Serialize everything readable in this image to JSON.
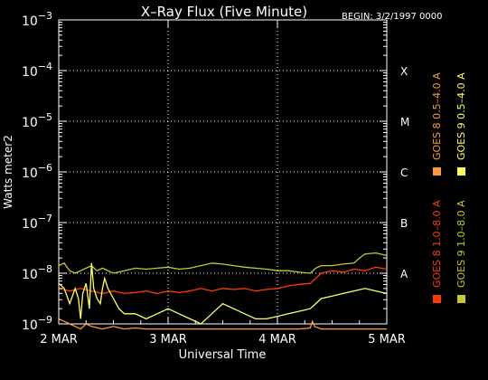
{
  "chart_data": {
    "type": "line",
    "title": "X–Ray Flux (Five Minute)",
    "begin_label": "BEGIN: 3/2/1997 0000",
    "xlabel": "Universal Time",
    "ylabel": "Watts meter2",
    "y_scale": "log",
    "ylim_exponent": [
      -9,
      -3
    ],
    "xlim_days": [
      0,
      3
    ],
    "y_ticks": [
      {
        "base": "10",
        "exp": "−3",
        "value": -3
      },
      {
        "base": "10",
        "exp": "−4",
        "value": -4
      },
      {
        "base": "10",
        "exp": "−5",
        "value": -5
      },
      {
        "base": "10",
        "exp": "−6",
        "value": -6
      },
      {
        "base": "10",
        "exp": "−7",
        "value": -7
      },
      {
        "base": "10",
        "exp": "−8",
        "value": -8
      },
      {
        "base": "10",
        "exp": "−9",
        "value": -9
      }
    ],
    "x_ticks": [
      {
        "label": "2 MAR",
        "value": 0
      },
      {
        "label": "3 MAR",
        "value": 1
      },
      {
        "label": "4 MAR",
        "value": 2
      },
      {
        "label": "5 MAR",
        "value": 3
      }
    ],
    "class_labels": [
      {
        "label": "X",
        "value": -4
      },
      {
        "label": "M",
        "value": -5
      },
      {
        "label": "C",
        "value": -6
      },
      {
        "label": "B",
        "value": -7
      },
      {
        "label": "A",
        "value": -8
      }
    ],
    "grid": true,
    "legend_position": "right, vertical",
    "series": [
      {
        "name": "GOES 8 1.0–8.0 A",
        "color": "#ff3c00",
        "x": [
          0,
          0.1,
          0.2,
          0.3,
          0.4,
          0.5,
          0.6,
          0.7,
          0.8,
          0.9,
          1.0,
          1.1,
          1.2,
          1.3,
          1.4,
          1.5,
          1.6,
          1.7,
          1.8,
          1.9,
          2.0,
          2.1,
          2.2,
          2.3,
          2.35,
          2.4,
          2.5,
          2.6,
          2.7,
          2.8,
          2.9,
          3.0
        ],
        "y": [
          -8.3,
          -8.35,
          -8.3,
          -8.35,
          -8.4,
          -8.35,
          -8.4,
          -8.38,
          -8.35,
          -8.4,
          -8.35,
          -8.38,
          -8.35,
          -8.3,
          -8.35,
          -8.3,
          -8.32,
          -8.3,
          -8.35,
          -8.32,
          -8.3,
          -8.25,
          -8.22,
          -8.2,
          -8.1,
          -8.0,
          -7.95,
          -7.98,
          -7.92,
          -7.95,
          -7.88,
          -7.92
        ]
      },
      {
        "name": "GOES 8 0.5–4.0 A",
        "color": "#ff9a3c",
        "x": [
          0,
          0.05,
          0.1,
          0.15,
          0.2,
          0.25,
          0.3,
          0.4,
          0.5,
          0.6,
          0.7,
          0.8,
          0.9,
          1.0,
          1.2,
          1.4,
          1.6,
          1.8,
          2.0,
          2.2,
          2.3,
          2.32,
          2.34,
          2.4,
          2.6,
          2.8,
          3.0
        ],
        "y": [
          -8.9,
          -8.95,
          -9.0,
          -9.05,
          -9.1,
          -9.0,
          -9.05,
          -9.1,
          -9.05,
          -9.1,
          -9.08,
          -9.1,
          -9.1,
          -9.1,
          -9.1,
          -9.1,
          -9.1,
          -9.1,
          -9.1,
          -9.1,
          -9.08,
          -8.95,
          -9.05,
          -9.1,
          -9.1,
          -9.1,
          -9.1
        ]
      },
      {
        "name": "GOES 9 1.0–8.0 A",
        "color": "#c8c832",
        "x": [
          0,
          0.05,
          0.1,
          0.15,
          0.2,
          0.25,
          0.3,
          0.35,
          0.4,
          0.45,
          0.5,
          0.6,
          0.7,
          0.8,
          0.9,
          1.0,
          1.1,
          1.2,
          1.3,
          1.4,
          1.5,
          1.6,
          1.7,
          1.8,
          1.9,
          2.0,
          2.1,
          2.2,
          2.3,
          2.35,
          2.4,
          2.5,
          2.6,
          2.7,
          2.75,
          2.8,
          2.9,
          3.0
        ],
        "y": [
          -7.85,
          -7.8,
          -7.95,
          -8.0,
          -7.95,
          -7.9,
          -7.85,
          -7.95,
          -7.9,
          -7.95,
          -8.0,
          -7.95,
          -7.9,
          -7.92,
          -7.9,
          -7.88,
          -7.92,
          -7.9,
          -7.85,
          -7.8,
          -7.82,
          -7.85,
          -7.88,
          -7.9,
          -7.92,
          -7.95,
          -7.95,
          -7.98,
          -8.0,
          -7.9,
          -7.85,
          -7.85,
          -7.82,
          -7.8,
          -7.7,
          -7.62,
          -7.6,
          -7.65
        ]
      },
      {
        "name": "GOES 9 0.5–4.0 A",
        "color": "#ffff64",
        "x": [
          0,
          0.05,
          0.1,
          0.15,
          0.18,
          0.2,
          0.22,
          0.25,
          0.28,
          0.3,
          0.32,
          0.35,
          0.38,
          0.4,
          0.42,
          0.45,
          0.5,
          0.55,
          0.6,
          0.7,
          0.8,
          0.9,
          1.0,
          1.1,
          1.2,
          1.3,
          1.4,
          1.5,
          1.6,
          1.7,
          1.8,
          1.9,
          2.0,
          2.1,
          2.2,
          2.3,
          2.35,
          2.4,
          2.5,
          2.6,
          2.7,
          2.8,
          2.9,
          3.0
        ],
        "y": [
          -8.2,
          -8.3,
          -8.6,
          -8.3,
          -8.5,
          -8.9,
          -8.4,
          -8.2,
          -8.7,
          -7.8,
          -8.3,
          -8.5,
          -8.6,
          -8.3,
          -8.1,
          -8.3,
          -8.5,
          -8.7,
          -8.8,
          -8.8,
          -8.9,
          -8.8,
          -8.7,
          -8.8,
          -8.9,
          -9.0,
          -8.8,
          -8.6,
          -8.7,
          -8.8,
          -8.9,
          -8.9,
          -8.85,
          -8.8,
          -8.75,
          -8.7,
          -8.6,
          -8.5,
          -8.45,
          -8.4,
          -8.35,
          -8.3,
          -8.35,
          -8.4
        ]
      }
    ]
  }
}
